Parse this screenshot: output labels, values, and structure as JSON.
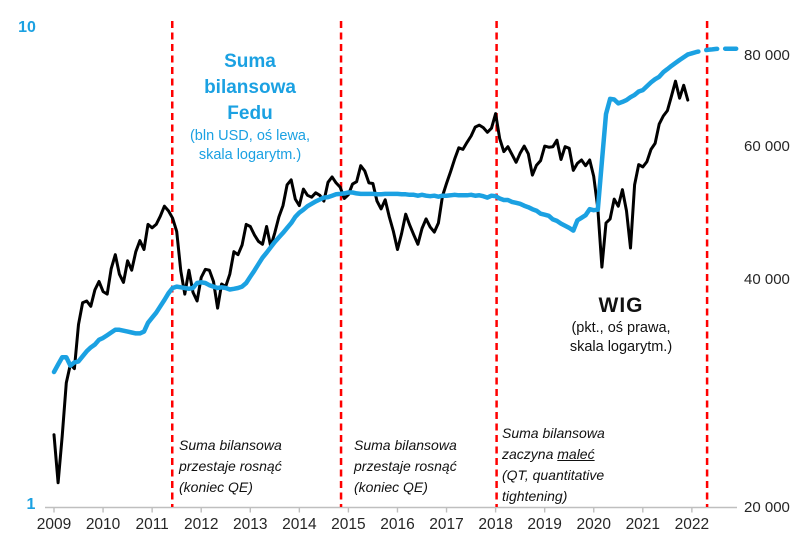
{
  "colors": {
    "accent_blue": "#1BA1E2",
    "line_black": "#000000",
    "event_red": "#FF0000",
    "axis_gray": "#BFBFBF"
  },
  "annotations": {
    "fed_label": {
      "title_lines": [
        "Suma",
        "bilansowa",
        "Fedu"
      ],
      "subtitle_lines": [
        "(bln USD, oś lewa,",
        "skala logarytm.)"
      ]
    },
    "wig_label": {
      "title": "WIG",
      "subtitle_lines": [
        "(pkt., oś prawa,",
        "skala logarytm.)"
      ]
    },
    "event1": {
      "lines": [
        "Suma bilansowa",
        "przestaje rosnąć",
        "(koniec QE)"
      ]
    },
    "event2": {
      "lines": [
        "Suma bilansowa",
        "przestaje rosnąć",
        "(koniec QE)"
      ]
    },
    "event3": {
      "line1": "Suma bilansowa",
      "line2_prefix": "zaczyna ",
      "line2_underline": "maleć",
      "line3": "(QT, quantitative",
      "line4": "tightening)"
    }
  },
  "chart_data": {
    "type": "line",
    "frequency": "monthly",
    "start": "2009-01",
    "axis_color": "#BFBFBF",
    "event_color": "#FF0000",
    "x_axis": {
      "labels": [
        "2009",
        "2010",
        "2011",
        "2012",
        "2013",
        "2014",
        "2015",
        "2016",
        "2017",
        "2018",
        "2019",
        "2020",
        "2021",
        "2022"
      ]
    },
    "left_axis": {
      "scale": "log",
      "min": 1,
      "max": 10,
      "labels": [
        "10",
        "1"
      ]
    },
    "right_axis": {
      "scale": "log",
      "tick_values": [
        80000,
        60000,
        40000,
        20000
      ],
      "labels": [
        "80 000",
        "60 000",
        "40 000",
        "20 000"
      ]
    },
    "event_lines": [
      {
        "x_year": 2011.41
      },
      {
        "x_year": 2014.85
      },
      {
        "x_year": 2018.02
      },
      {
        "x_year": 2022.31
      }
    ],
    "series": [
      {
        "name": "WIG",
        "axis": "right",
        "unit": "thousand points",
        "color": "#000000",
        "style": "solid",
        "start_month": 0,
        "values": [
          25.0,
          21.6,
          24.9,
          29.3,
          31.0,
          30.6,
          35.0,
          37.4,
          37.6,
          37.0,
          38.9,
          39.9,
          38.7,
          38.4,
          41.5,
          43.3,
          40.8,
          39.8,
          42.5,
          41.3,
          43.7,
          45.2,
          44.0,
          47.5,
          47.0,
          47.5,
          48.7,
          50.2,
          49.5,
          48.4,
          46.5,
          41.2,
          38.4,
          41.3,
          38.6,
          37.6,
          40.4,
          41.4,
          41.3,
          39.9,
          36.8,
          39.6,
          39.3,
          40.8,
          43.7,
          43.3,
          44.6,
          47.5,
          47.2,
          46.0,
          45.1,
          44.7,
          47.2,
          44.4,
          46.3,
          48.6,
          50.3,
          53.6,
          54.4,
          51.3,
          50.3,
          52.9,
          51.9,
          51.6,
          52.3,
          51.9,
          51.0,
          54.0,
          54.9,
          53.9,
          53.2,
          51.4,
          52.0,
          53.7,
          54.1,
          56.8,
          55.9,
          53.9,
          53.8,
          51.0,
          49.8,
          51.2,
          48.6,
          46.5,
          44.0,
          46.2,
          49.0,
          47.4,
          46.0,
          44.7,
          46.9,
          48.3,
          47.1,
          46.4,
          47.7,
          51.8,
          53.8,
          55.8,
          58.0,
          60.0,
          59.7,
          61.0,
          62.2,
          63.9,
          64.3,
          63.8,
          62.9,
          63.7,
          66.6,
          61.7,
          59.3,
          60.2,
          58.8,
          57.4,
          59.0,
          60.3,
          58.9,
          55.2,
          56.9,
          57.7,
          60.3,
          60.1,
          60.2,
          61.4,
          57.9,
          60.2,
          59.9,
          56.0,
          57.2,
          57.8,
          56.8,
          57.8,
          55.0,
          49.9,
          41.7,
          47.7,
          48.3,
          51.3,
          50.2,
          52.8,
          49.5,
          44.2,
          53.6,
          57.0,
          56.6,
          57.5,
          59.7,
          60.8,
          64.5,
          66.1,
          67.2,
          70.2,
          73.5,
          69.8,
          72.6,
          69.4
        ]
      },
      {
        "name": "Suma bilansowa Fedu",
        "axis": "left",
        "unit": "bln USD",
        "color": "#1BA1E2",
        "style": "solid",
        "start_month": 0,
        "values": [
          1.9,
          1.97,
          2.04,
          2.04,
          1.96,
          1.99,
          2.0,
          2.05,
          2.1,
          2.14,
          2.17,
          2.22,
          2.24,
          2.27,
          2.3,
          2.33,
          2.33,
          2.32,
          2.31,
          2.3,
          2.29,
          2.29,
          2.31,
          2.41,
          2.47,
          2.53,
          2.61,
          2.69,
          2.78,
          2.85,
          2.87,
          2.86,
          2.85,
          2.84,
          2.85,
          2.92,
          2.93,
          2.92,
          2.89,
          2.87,
          2.85,
          2.86,
          2.85,
          2.83,
          2.84,
          2.85,
          2.87,
          2.92,
          3.01,
          3.1,
          3.2,
          3.3,
          3.38,
          3.47,
          3.56,
          3.64,
          3.72,
          3.81,
          3.9,
          4.02,
          4.1,
          4.16,
          4.23,
          4.28,
          4.33,
          4.37,
          4.41,
          4.42,
          4.45,
          4.48,
          4.49,
          4.5,
          4.52,
          4.52,
          4.5,
          4.49,
          4.49,
          4.49,
          4.49,
          4.48,
          4.48,
          4.49,
          4.49,
          4.49,
          4.49,
          4.48,
          4.48,
          4.47,
          4.47,
          4.45,
          4.47,
          4.45,
          4.44,
          4.45,
          4.43,
          4.45,
          4.45,
          4.46,
          4.47,
          4.46,
          4.46,
          4.46,
          4.47,
          4.45,
          4.46,
          4.44,
          4.41,
          4.45,
          4.44,
          4.39,
          4.36,
          4.36,
          4.32,
          4.3,
          4.28,
          4.24,
          4.21,
          4.17,
          4.14,
          4.08,
          4.06,
          4.04,
          3.97,
          3.94,
          3.89,
          3.85,
          3.81,
          3.76,
          3.95,
          4.0,
          4.05,
          4.17,
          4.15,
          4.16,
          5.25,
          6.6,
          7.1,
          7.08,
          6.95,
          7.0,
          7.06,
          7.16,
          7.24,
          7.36,
          7.41,
          7.55,
          7.69,
          7.81,
          7.9,
          8.08,
          8.2,
          8.33,
          8.45,
          8.57,
          8.68,
          8.8
        ]
      },
      {
        "name": "Suma bilansowa Fedu (dashed)",
        "axis": "left",
        "unit": "bln USD",
        "color": "#1BA1E2",
        "style": "dashed",
        "start_month": 155,
        "values": [
          8.8,
          8.85,
          8.9,
          8.94,
          8.98,
          9.0,
          9.02,
          9.04,
          9.05,
          9.05,
          9.05,
          9.05,
          9.05
        ]
      }
    ]
  }
}
